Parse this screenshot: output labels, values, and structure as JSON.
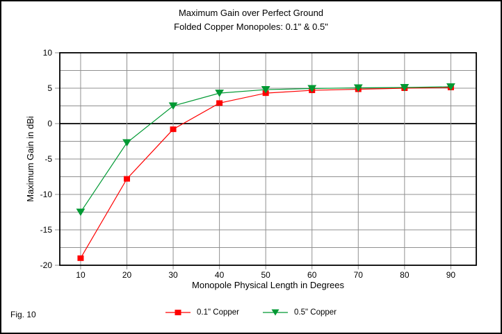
{
  "figure_label": "Fig. 10",
  "chart_data": {
    "type": "line",
    "title": "Maximum Gain over Perfect Ground",
    "subtitle": "Folded Copper Monopoles: 0.1\" & 0.5\"",
    "xlabel": "Monopole Physical Length in Degrees",
    "ylabel": "Maximum Gain in dBi",
    "x": [
      10,
      20,
      30,
      40,
      50,
      60,
      70,
      80,
      90
    ],
    "series": [
      {
        "name": "0.1\" Copper",
        "marker": "square",
        "color": "#ff0000",
        "values": [
          -19.0,
          -7.8,
          -0.8,
          2.9,
          4.3,
          4.7,
          4.85,
          5.0,
          5.1
        ]
      },
      {
        "name": "0.5\" Copper",
        "marker": "triangle-down",
        "color": "#009933",
        "values": [
          -12.5,
          -2.7,
          2.5,
          4.3,
          4.8,
          4.95,
          5.05,
          5.1,
          5.2
        ]
      }
    ],
    "xlim": [
      5.5,
      95.5
    ],
    "ylim": [
      -20,
      10
    ],
    "x_tick_step": 10,
    "y_major_step": 5,
    "y_minor_step": 2.5,
    "grid": true,
    "zero_line": true,
    "legend_position": "bottom-center",
    "colors": {
      "grid": "#909090",
      "axis": "#000000",
      "background": "#ffffff",
      "text": "#000000"
    }
  }
}
